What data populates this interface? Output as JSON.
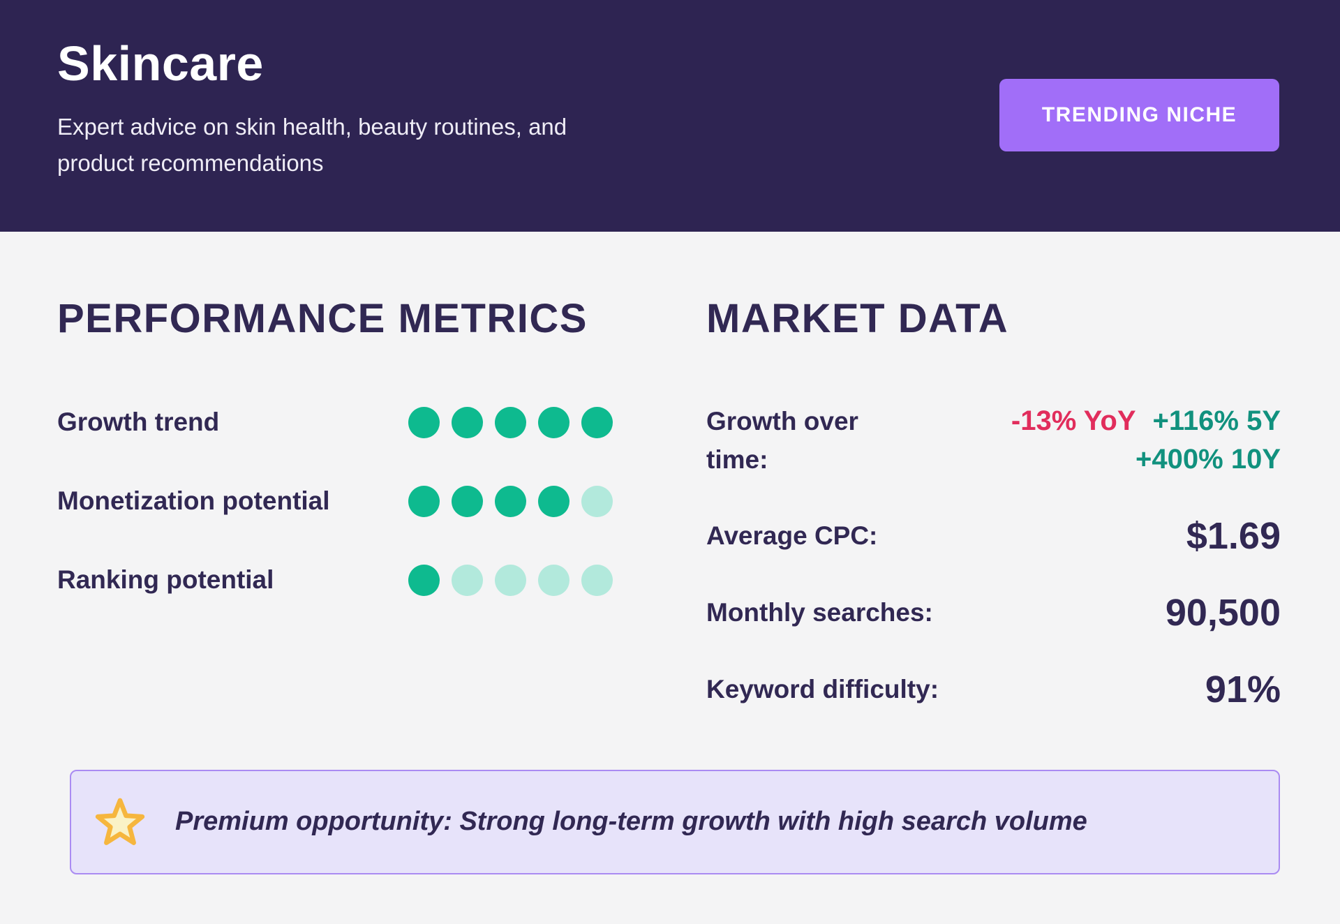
{
  "header": {
    "title": "Skincare",
    "subtitle": "Expert advice on skin health, beauty routines, and product recommendations",
    "badge_label": "TRENDING NICHE"
  },
  "performance": {
    "heading": "PERFORMANCE METRICS",
    "metrics": [
      {
        "label": "Growth trend",
        "score": 5,
        "max": 5
      },
      {
        "label": "Monetization potential",
        "score": 4,
        "max": 5
      },
      {
        "label": "Ranking potential",
        "score": 1,
        "max": 5
      }
    ]
  },
  "market": {
    "heading": "MARKET DATA",
    "growth_label": "Growth over time:",
    "growth_values": {
      "yoy": "-13% YoY",
      "five_year": "+116% 5Y",
      "ten_year": "+400% 10Y"
    },
    "rows": [
      {
        "label": "Average CPC:",
        "value": "$1.69"
      },
      {
        "label": "Monthly searches:",
        "value": "90,500"
      },
      {
        "label": "Keyword difficulty:",
        "value": "91%"
      }
    ]
  },
  "banner": {
    "icon": "star-icon",
    "text": "Premium opportunity: Strong long-term growth with high search volume"
  },
  "colors": {
    "header_bg": "#2E2452",
    "page_bg": "#F4F4F5",
    "ink": "#312853",
    "subtitle_text": "#EFEDF6",
    "badge_bg": "#A16EF8",
    "badge_text": "#FFFFFF",
    "dot_filled": "#0EBA8F",
    "dot_empty": "#B2E9DC",
    "negative": "#E12D5C",
    "positive": "#11917E",
    "banner_bg": "#E7E3FA",
    "banner_border": "#AA8BF2",
    "star_fill": "#FAF2C6",
    "star_stroke": "#F6B63E"
  }
}
